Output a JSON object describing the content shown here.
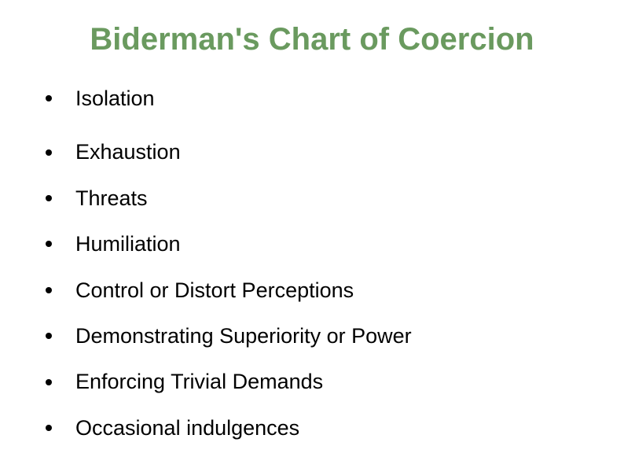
{
  "title": "Biderman's Chart of Coercion",
  "title_color": "#6a9a5f",
  "title_fontsize": 40,
  "text_color": "#000000",
  "text_fontsize": 27,
  "bullet_color": "#000000",
  "background_color": "#ffffff",
  "items": [
    "Isolation",
    "Exhaustion",
    "Threats",
    "Humiliation",
    "Control or Distort Perceptions",
    "Demonstrating Superiority or Power",
    "Enforcing Trivial Demands",
    "Occasional indulgences"
  ]
}
